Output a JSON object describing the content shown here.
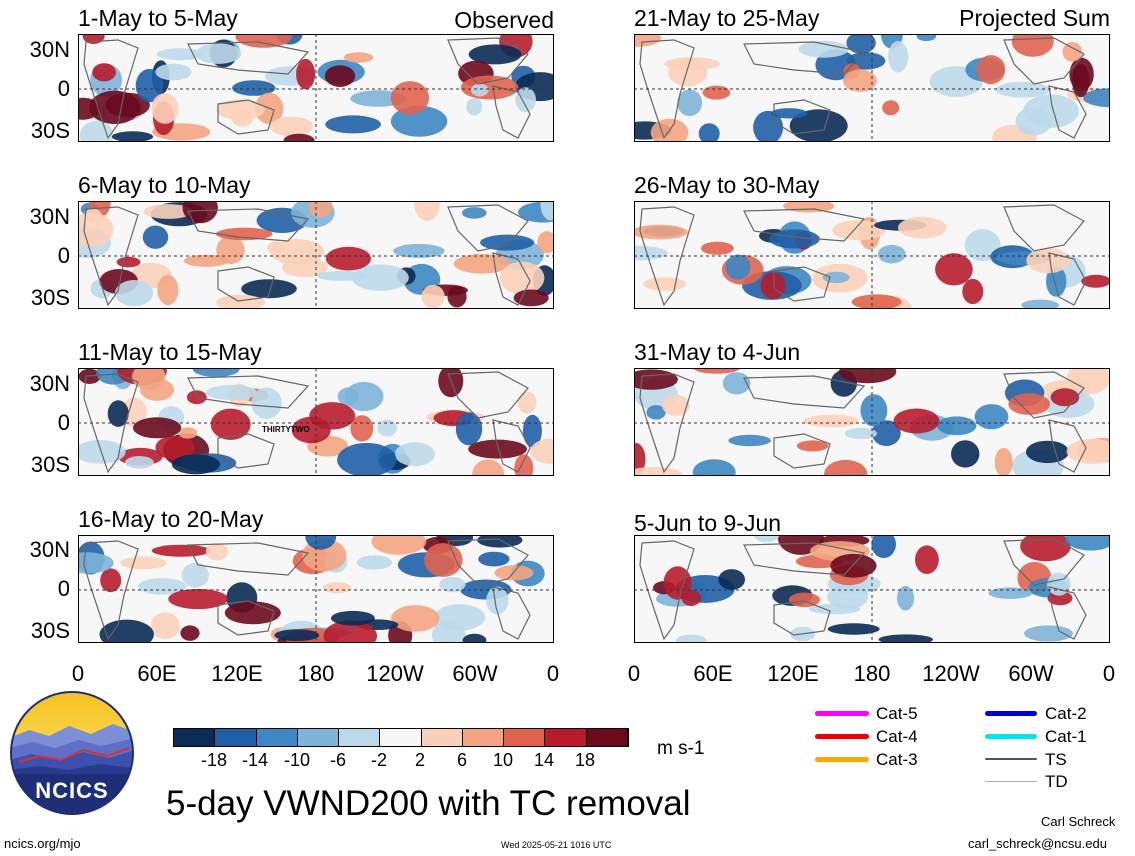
{
  "panels": [
    {
      "id": "p1",
      "title": "1-May to 5-May",
      "tag": "Observed"
    },
    {
      "id": "p2",
      "title": "21-May to 25-May",
      "tag": "Projected Sum"
    },
    {
      "id": "p3",
      "title": "6-May to 10-May",
      "tag": ""
    },
    {
      "id": "p4",
      "title": "26-May to 30-May",
      "tag": ""
    },
    {
      "id": "p5",
      "title": "11-May to 15-May",
      "tag": "",
      "storm": "THIRTYTWO"
    },
    {
      "id": "p6",
      "title": "31-May to 4-Jun",
      "tag": ""
    },
    {
      "id": "p7",
      "title": "16-May to 20-May",
      "tag": ""
    },
    {
      "id": "p8",
      "title": "5-Jun to 9-Jun",
      "tag": ""
    }
  ],
  "lat_labels": [
    "30N",
    "0",
    "30S"
  ],
  "lon_labels": [
    "0",
    "60E",
    "120E",
    "180",
    "120W",
    "60W",
    "0"
  ],
  "colorbar": {
    "labels": [
      "-18",
      "-14",
      "-10",
      "-6",
      "-2",
      "2",
      "6",
      "10",
      "14",
      "18"
    ],
    "colors": [
      "#0a2b55",
      "#1f5fa6",
      "#3d87c2",
      "#7db4d9",
      "#bcd9eb",
      "#f7f7f7",
      "#fbd0b9",
      "#f3a582",
      "#e0634f",
      "#b71c2c",
      "#6b0a1e"
    ],
    "units": "m s-1"
  },
  "title": "5-day VWND200 with TC removal",
  "logo_text": "NCICS",
  "footer": {
    "site": "ncics.org/mjo",
    "timestamp": "Wed 2025-05-21 1016 UTC",
    "author": "Carl Schreck",
    "email": "carl_schreck@ncsu.edu"
  },
  "legend": [
    {
      "label": "Cat-5",
      "color": "#ff00ff"
    },
    {
      "label": "Cat-4",
      "color": "#ee0000"
    },
    {
      "label": "Cat-3",
      "color": "#ffa500"
    },
    {
      "label": "Cat-2",
      "color": "#0000dd"
    },
    {
      "label": "Cat-1",
      "color": "#00e5ee"
    },
    {
      "label": "TS",
      "color": "#555555"
    },
    {
      "label": "TD",
      "color": "#aaaaaa"
    }
  ]
}
